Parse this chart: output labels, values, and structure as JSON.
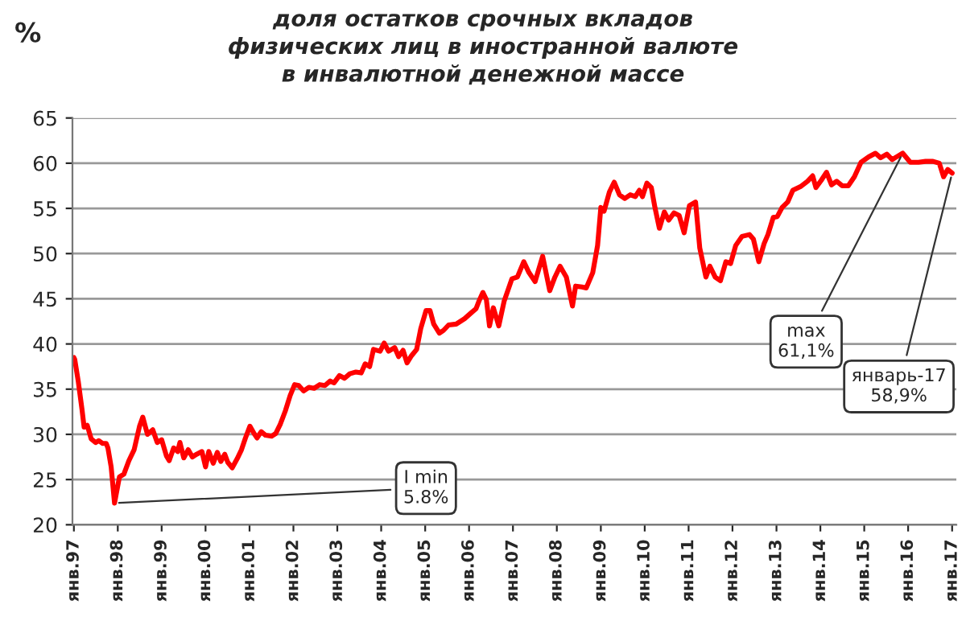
{
  "chart_data": {
    "type": "line",
    "title": "доля остатков срочных вкладов\nфизических лиц в иностранной валюте\nв инвалютной денежной массе",
    "ylabel": "%",
    "x": [
      "1997-01-01",
      "1997-01-08",
      "1997-02-07",
      "1997-03-09",
      "1997-03-27",
      "1997-04-22",
      "1997-05-25",
      "1997-07-01",
      "1997-07-26",
      "1997-08-28",
      "1997-09-27",
      "1997-10-11",
      "1997-11-07",
      "1997-12-05",
      "1998-01-15",
      "1998-02-21",
      "1998-04-04",
      "1998-05-17",
      "1998-07-01",
      "1998-07-28",
      "1998-09-05",
      "1998-10-19",
      "1998-11-25",
      "1999-01-01",
      "1999-02-10",
      "1999-03-05",
      "1999-04-11",
      "1999-05-14",
      "1999-06-02",
      "1999-07-04",
      "1999-08-10",
      "1999-09-13",
      "1999-10-19",
      "1999-12-02",
      "2000-01-01",
      "2000-01-28",
      "2000-03-05",
      "2000-04-08",
      "2000-05-07",
      "2000-06-09",
      "2000-07-04",
      "2000-08-10",
      "2000-09-20",
      "2000-10-26",
      "2000-11-28",
      "2001-01-04",
      "2001-02-07",
      "2001-03-05",
      "2001-04-08",
      "2001-05-14",
      "2001-07-04",
      "2001-08-07",
      "2001-09-13",
      "2001-10-26",
      "2001-12-05",
      "2002-01-11",
      "2002-02-14",
      "2002-03-27",
      "2002-05-10",
      "2002-06-23",
      "2002-08-07",
      "2002-09-20",
      "2002-11-03",
      "2002-12-05",
      "2003-01-19",
      "2003-03-02",
      "2003-04-15",
      "2003-06-05",
      "2003-07-19",
      "2003-08-21",
      "2003-09-27",
      "2003-10-29",
      "2003-12-23",
      "2004-01-26",
      "2004-03-02",
      "2004-04-22",
      "2004-05-25",
      "2004-07-01",
      "2004-08-03",
      "2004-09-09",
      "2004-10-22",
      "2004-11-25",
      "2005-01-08",
      "2005-02-10",
      "2005-03-13",
      "2005-04-29",
      "2005-06-02",
      "2005-07-15",
      "2005-09-16",
      "2005-11-25",
      "2006-01-15",
      "2006-02-28",
      "2006-03-23",
      "2006-04-26",
      "2006-05-25",
      "2006-06-20",
      "2006-07-22",
      "2006-09-05",
      "2006-10-19",
      "2006-12-23",
      "2007-02-07",
      "2007-04-01",
      "2007-05-14",
      "2007-07-04",
      "2007-09-05",
      "2007-11-03",
      "2007-12-16",
      "2008-01-28",
      "2008-03-20",
      "2008-05-10",
      "2008-06-05",
      "2008-07-28",
      "2008-09-02",
      "2008-10-26",
      "2008-12-05",
      "2009-01-01",
      "2009-01-28",
      "2009-03-13",
      "2009-04-22",
      "2009-06-05",
      "2009-07-19",
      "2009-09-02",
      "2009-10-15",
      "2009-11-17",
      "2009-12-13",
      "2010-01-19",
      "2010-02-25",
      "2010-03-27",
      "2010-05-03",
      "2010-06-13",
      "2010-07-19",
      "2010-09-02",
      "2010-10-15",
      "2010-11-25",
      "2011-01-08",
      "2011-02-28",
      "2011-04-04",
      "2011-05-25",
      "2011-06-27",
      "2011-08-10",
      "2011-09-23",
      "2011-11-07",
      "2011-12-16",
      "2012-01-28",
      "2012-03-20",
      "2012-05-21",
      "2012-06-23",
      "2012-08-07",
      "2012-09-20",
      "2012-10-22",
      "2012-12-05",
      "2013-01-08",
      "2013-02-17",
      "2013-04-04",
      "2013-05-17",
      "2013-07-19",
      "2013-09-16",
      "2013-10-29",
      "2013-11-25",
      "2014-01-08",
      "2014-02-21",
      "2014-04-04",
      "2014-05-17",
      "2014-07-01",
      "2014-08-21",
      "2014-10-11",
      "2014-12-05",
      "2015-02-07",
      "2015-04-04",
      "2015-05-17",
      "2015-07-08",
      "2015-08-21",
      "2015-09-27",
      "2015-11-17",
      "2016-01-19",
      "2016-03-27",
      "2016-05-25",
      "2016-07-26",
      "2016-09-16",
      "2016-10-22",
      "2016-11-25",
      "2017-01-01"
    ],
    "series": [
      {
        "color": "#ff0000",
        "values": [
          38.5,
          38.3,
          35.8,
          32.8,
          30.8,
          31.0,
          29.5,
          29.1,
          29.3,
          29.0,
          29.0,
          28.5,
          26.4,
          22.4,
          25.3,
          25.6,
          27.1,
          28.3,
          30.9,
          31.9,
          30.0,
          30.5,
          29.1,
          29.4,
          27.6,
          27.1,
          28.5,
          28.1,
          29.1,
          27.4,
          28.3,
          27.5,
          27.8,
          28.1,
          26.4,
          28.1,
          26.8,
          28.0,
          27.0,
          27.8,
          26.9,
          26.3,
          27.3,
          28.3,
          29.6,
          30.9,
          30.1,
          29.6,
          30.3,
          29.9,
          29.8,
          30.1,
          31.1,
          32.6,
          34.3,
          35.5,
          35.4,
          34.8,
          35.2,
          35.1,
          35.5,
          35.4,
          35.9,
          35.7,
          36.5,
          36.2,
          36.7,
          36.9,
          36.8,
          37.8,
          37.5,
          39.4,
          39.2,
          40.1,
          39.2,
          39.6,
          38.6,
          39.3,
          37.9,
          38.7,
          39.4,
          41.7,
          43.7,
          43.7,
          42.2,
          41.2,
          41.5,
          42.1,
          42.2,
          42.8,
          43.4,
          43.9,
          44.7,
          45.7,
          44.9,
          42.0,
          44.0,
          42.0,
          44.7,
          47.2,
          47.4,
          49.1,
          47.9,
          46.9,
          49.7,
          45.9,
          47.4,
          48.6,
          47.4,
          44.2,
          46.4,
          46.3,
          46.2,
          47.9,
          50.9,
          55.1,
          54.7,
          56.8,
          57.9,
          56.5,
          56.1,
          56.5,
          56.3,
          57.0,
          56.3,
          57.8,
          57.3,
          55.1,
          52.8,
          54.6,
          53.7,
          54.5,
          54.2,
          52.3,
          55.3,
          55.7,
          50.6,
          47.4,
          48.6,
          47.4,
          47.0,
          49.1,
          48.9,
          50.9,
          51.9,
          52.1,
          51.6,
          49.1,
          51.1,
          52.1,
          54.0,
          54.1,
          55.1,
          55.7,
          57.0,
          57.4,
          58.0,
          58.6,
          57.3,
          58.1,
          59.0,
          57.6,
          58.0,
          57.5,
          57.5,
          58.5,
          60.1,
          60.7,
          61.1,
          60.6,
          61.0,
          60.4,
          60.7,
          61.1,
          60.1,
          60.1,
          60.2,
          60.2,
          60.0,
          58.5,
          59.3,
          58.9
        ]
      }
    ],
    "xlim": [
      "1996-12-20",
      "2017-02-05"
    ],
    "xticks": [
      {
        "value": "1997-01-01",
        "label": "янв.97"
      },
      {
        "value": "1998-01-01",
        "label": "янв.98"
      },
      {
        "value": "1999-01-01",
        "label": "янв.99"
      },
      {
        "value": "2000-01-01",
        "label": "янв.00"
      },
      {
        "value": "2001-01-01",
        "label": "янв.01"
      },
      {
        "value": "2002-01-01",
        "label": "янв.02"
      },
      {
        "value": "2003-01-01",
        "label": "янв.03"
      },
      {
        "value": "2004-01-01",
        "label": "янв.04"
      },
      {
        "value": "2005-01-01",
        "label": "янв.05"
      },
      {
        "value": "2006-01-01",
        "label": "янв.06"
      },
      {
        "value": "2007-01-01",
        "label": "янв.07"
      },
      {
        "value": "2008-01-01",
        "label": "янв.08"
      },
      {
        "value": "2009-01-01",
        "label": "янв.09"
      },
      {
        "value": "2010-01-01",
        "label": "янв.10"
      },
      {
        "value": "2011-01-01",
        "label": "янв.11"
      },
      {
        "value": "2012-01-01",
        "label": "янв.12"
      },
      {
        "value": "2013-01-01",
        "label": "янв.13"
      },
      {
        "value": "2014-01-01",
        "label": "янв.14"
      },
      {
        "value": "2015-01-01",
        "label": "янв.15"
      },
      {
        "value": "2016-01-01",
        "label": "янв.16"
      },
      {
        "value": "2017-01-01",
        "label": "янв.17"
      }
    ],
    "ylim": [
      20,
      65
    ],
    "yticks": [
      20,
      25,
      30,
      35,
      40,
      45,
      50,
      55,
      60,
      65
    ],
    "grid": "y",
    "annotations": [
      {
        "text": "I min\n5.8%",
        "x": "1997-12-05",
        "y": 22.4
      },
      {
        "text": "max\n61,1%",
        "x": "2015-11-17",
        "y": 61.1
      },
      {
        "text": "январь-17\n58,9%",
        "x": "2017-01-01",
        "y": 58.9
      }
    ]
  }
}
